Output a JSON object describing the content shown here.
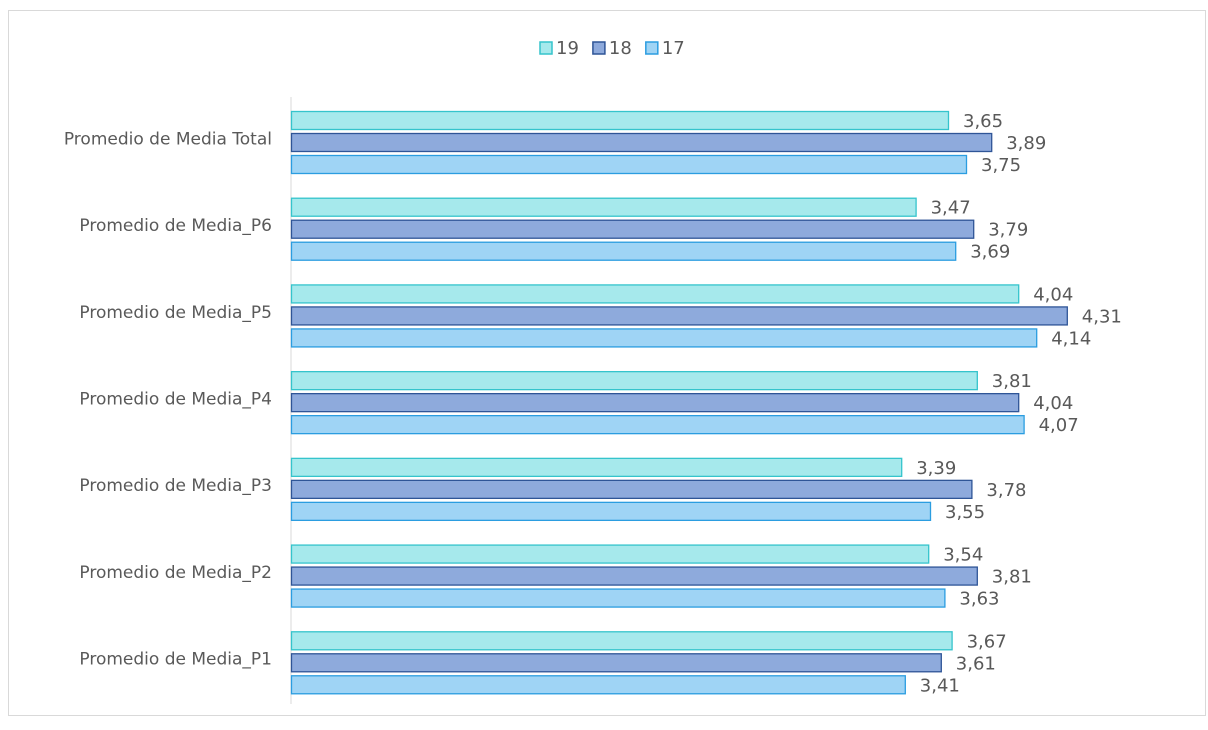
{
  "chart_data": {
    "type": "bar",
    "orientation": "horizontal",
    "categories": [
      "Promedio de Media Total",
      "Promedio de Media_P6",
      "Promedio de Media_P5",
      "Promedio de Media_P4",
      "Promedio de Media_P3",
      "Promedio de Media_P2",
      "Promedio de Media_P1"
    ],
    "series": [
      {
        "name": "19",
        "color": "#a6e9ec",
        "edge": "#35c4cc",
        "values": [
          3.65,
          3.47,
          4.04,
          3.81,
          3.39,
          3.54,
          3.67
        ],
        "value_labels": [
          "3,65",
          "3,47",
          "4,04",
          "3,81",
          "3,39",
          "3,54",
          "3,67"
        ]
      },
      {
        "name": "18",
        "color": "#8eaadc",
        "edge": "#2f5597",
        "values": [
          3.89,
          3.79,
          4.31,
          4.04,
          3.78,
          3.81,
          3.61
        ],
        "value_labels": [
          "3,89",
          "3,79",
          "4,31",
          "4,04",
          "3,78",
          "3,81",
          "3,61"
        ]
      },
      {
        "name": "17",
        "color": "#9fd4f5",
        "edge": "#2b9de0",
        "values": [
          3.75,
          3.69,
          4.14,
          4.07,
          3.55,
          3.63,
          3.41
        ],
        "value_labels": [
          "3,75",
          "3,69",
          "4,14",
          "4,07",
          "3,55",
          "3,63",
          "3,41"
        ]
      }
    ],
    "xlim": [
      0,
      5
    ],
    "legend": "top"
  }
}
